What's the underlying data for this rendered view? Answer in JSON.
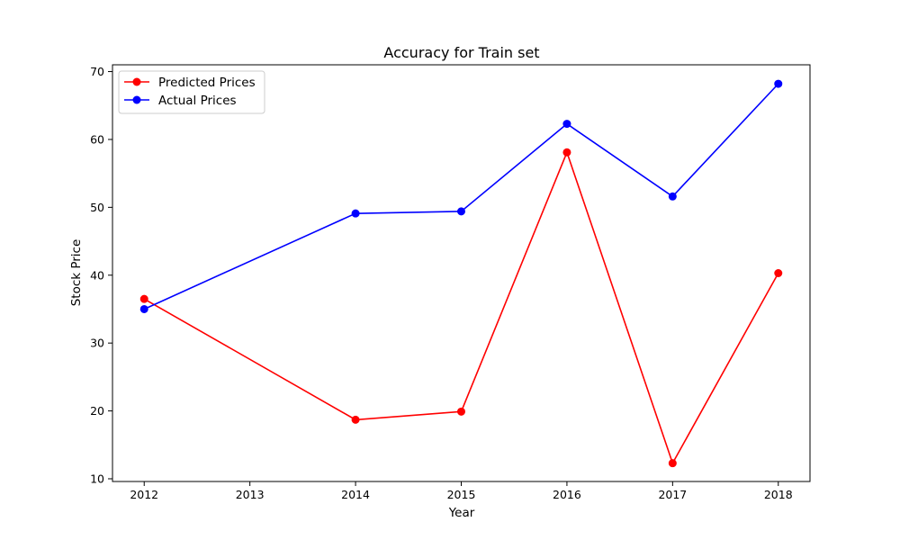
{
  "chart_data": {
    "type": "line",
    "title": "Accuracy for Train set",
    "xlabel": "Year",
    "ylabel": "Stock Price",
    "xlim": [
      2011.7,
      2018.3
    ],
    "ylim": [
      9.6,
      71.0
    ],
    "x_ticks": [
      2012,
      2013,
      2014,
      2015,
      2016,
      2017,
      2018
    ],
    "y_ticks": [
      10,
      20,
      30,
      40,
      50,
      60,
      70
    ],
    "grid": false,
    "legend_position": "top-left",
    "series": [
      {
        "name": "Predicted Prices",
        "color": "#ff0000",
        "x": [
          2012,
          2014,
          2015,
          2016,
          2017,
          2018
        ],
        "y": [
          36.5,
          18.7,
          19.9,
          58.1,
          12.3,
          40.3
        ]
      },
      {
        "name": "Actual Prices",
        "color": "#0000ff",
        "x": [
          2012,
          2014,
          2015,
          2016,
          2017,
          2018
        ],
        "y": [
          35.0,
          49.1,
          49.4,
          62.3,
          51.6,
          68.2
        ]
      }
    ]
  }
}
